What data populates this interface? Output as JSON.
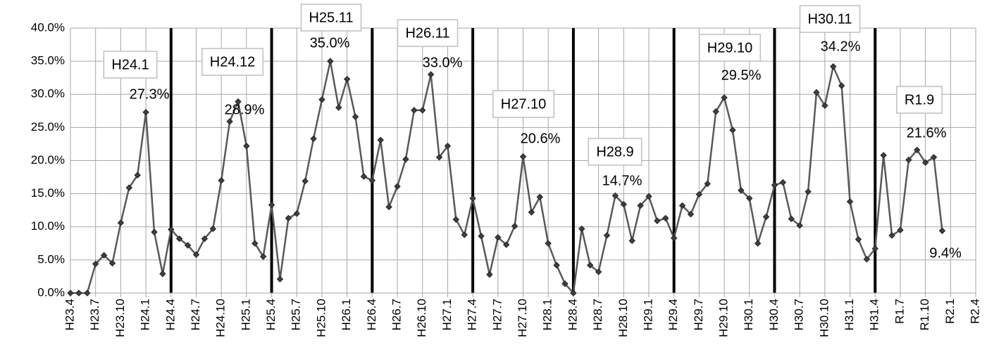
{
  "chart_data": {
    "type": "line",
    "categories": [
      "H23.4",
      null,
      null,
      "H23.7",
      null,
      null,
      "H23.10",
      null,
      null,
      "H24.1",
      null,
      null,
      "H24.4",
      null,
      null,
      "H24.7",
      null,
      null,
      "H24.10",
      null,
      null,
      "H25.1",
      null,
      null,
      "H25.4",
      null,
      null,
      "H25.7",
      null,
      null,
      "H25.10",
      null,
      null,
      "H26.1",
      null,
      null,
      "H26.4",
      null,
      null,
      "H26.7",
      null,
      null,
      "H26.10",
      null,
      null,
      "H27.1",
      null,
      null,
      "H27.4",
      null,
      null,
      "H27.7",
      null,
      null,
      "H27.10",
      null,
      null,
      "H28.1",
      null,
      null,
      "H28.4",
      null,
      null,
      "H28.7",
      null,
      null,
      "H28.10",
      null,
      null,
      "H29.1",
      null,
      null,
      "H29.4",
      null,
      null,
      "H29.7",
      null,
      null,
      "H29.10",
      null,
      null,
      "H30.1",
      null,
      null,
      "H30.4",
      null,
      null,
      "H30.7",
      null,
      null,
      "H30.10",
      null,
      null,
      "H31.1",
      null,
      null,
      "H31.4",
      null,
      null,
      "R1.7",
      null,
      null,
      "R1.10",
      null,
      null,
      "R2.1",
      null,
      null,
      "R2.4"
    ],
    "values": [
      0,
      0,
      0,
      4.4,
      5.7,
      4.5,
      10.6,
      15.9,
      17.8,
      27.3,
      9.2,
      2.9,
      9.6,
      8.2,
      7.2,
      5.8,
      8.2,
      9.7,
      17.0,
      25.9,
      28.9,
      22.2,
      7.5,
      5.5,
      13.3,
      2.1,
      11.3,
      12.0,
      16.9,
      23.3,
      29.2,
      35.0,
      28.0,
      32.3,
      26.6,
      17.6,
      17.0,
      23.1,
      13.0,
      16.1,
      20.2,
      27.6,
      27.6,
      33.0,
      20.5,
      22.2,
      11.1,
      8.8,
      14.3,
      8.6,
      2.8,
      8.4,
      7.3,
      10.1,
      20.6,
      12.2,
      14.5,
      7.5,
      4.2,
      1.4,
      0.0,
      9.7,
      4.2,
      3.2,
      8.7,
      14.7,
      13.4,
      7.9,
      13.2,
      14.6,
      10.9,
      11.3,
      8.3,
      13.2,
      11.9,
      14.9,
      16.5,
      27.4,
      29.5,
      24.6,
      15.5,
      14.3,
      7.5,
      11.5,
      16.3,
      16.7,
      11.2,
      10.2,
      15.3,
      30.3,
      28.3,
      34.2,
      31.3,
      13.8,
      8.1,
      5.1,
      6.7,
      20.8,
      8.7,
      9.5,
      20.1,
      21.6,
      19.7,
      20.5,
      9.4,
      null,
      null,
      null,
      null
    ],
    "value_labels": [
      null,
      null,
      null,
      null,
      null,
      null,
      null,
      null,
      null,
      "27.3%",
      null,
      null,
      null,
      null,
      null,
      null,
      null,
      null,
      null,
      null,
      "28.9%",
      null,
      null,
      null,
      null,
      null,
      null,
      null,
      null,
      null,
      null,
      "35.0%",
      null,
      null,
      null,
      null,
      null,
      null,
      null,
      null,
      null,
      null,
      null,
      "33.0%",
      null,
      null,
      null,
      null,
      null,
      null,
      null,
      null,
      null,
      null,
      "20.6%",
      null,
      null,
      null,
      null,
      null,
      null,
      null,
      null,
      null,
      null,
      "14.7%",
      null,
      null,
      null,
      null,
      null,
      null,
      null,
      null,
      null,
      null,
      null,
      null,
      "29.5%",
      null,
      null,
      null,
      null,
      null,
      null,
      null,
      null,
      null,
      null,
      null,
      null,
      "34.2%",
      null,
      null,
      null,
      null,
      null,
      null,
      null,
      null,
      null,
      "21.6%",
      null,
      null,
      "9.4%",
      null,
      null,
      null,
      null
    ],
    "annotations": [
      "H24.1",
      "H24.12",
      "H25.11",
      "H26.11",
      "H27.10",
      "H28.9",
      "H29.10",
      "H30.11",
      "R1.9"
    ],
    "color": "#595959",
    "ylim": [
      0,
      40
    ],
    "yticks": [
      {
        "value": 0,
        "label": "0.0%"
      },
      {
        "value": 5,
        "label": "5.0%"
      },
      {
        "value": 10,
        "label": "10.0%"
      },
      {
        "value": 15,
        "label": "15.0%"
      },
      {
        "value": 20,
        "label": "20.0%"
      },
      {
        "value": 25,
        "label": "25.0%"
      },
      {
        "value": 30,
        "label": "30.0%"
      },
      {
        "value": 35,
        "label": "35.0%"
      },
      {
        "value": 40,
        "label": "40.0%"
      }
    ],
    "grid": true
  }
}
